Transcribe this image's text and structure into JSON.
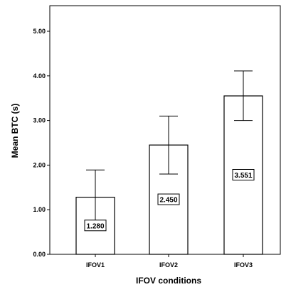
{
  "chart_data": {
    "type": "bar",
    "categories": [
      "IFOV1",
      "IFOV2",
      "IFOV3"
    ],
    "values": [
      1.28,
      2.45,
      3.551
    ],
    "value_labels": [
      "1.280",
      "2.450",
      "3.551"
    ],
    "error_bars": [
      {
        "low": 0.68,
        "high": 1.89
      },
      {
        "low": 1.8,
        "high": 3.1
      },
      {
        "low": 3.0,
        "high": 4.11
      }
    ],
    "xlabel": "IFOV conditions",
    "ylabel": "Mean BTC (s)",
    "ylim": [
      0,
      5.5
    ],
    "yticks": [
      "0.00",
      "1.00",
      "2.00",
      "3.00",
      "4.00",
      "5.00"
    ],
    "grid": false,
    "colors": {
      "bar_fill": "#ffffff",
      "stroke": "#000000"
    }
  }
}
